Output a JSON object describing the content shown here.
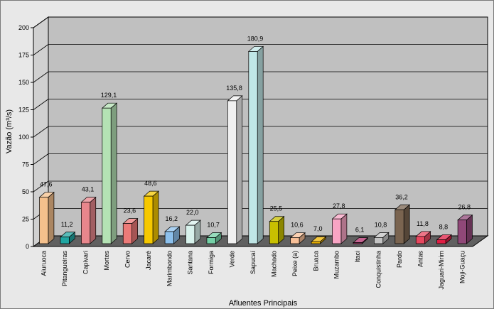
{
  "chart_data": {
    "type": "bar",
    "style": "3d-column",
    "xlabel": "Afluentes Principais",
    "ylabel": "Vazão (m³/s)",
    "ylim": [
      0,
      200
    ],
    "yticks": [
      0,
      25,
      50,
      75,
      100,
      125,
      150,
      175,
      200
    ],
    "grid": true,
    "categories": [
      "Aiuruoca",
      "Pitangueiras",
      "Capivari",
      "Mortes",
      "Cervo",
      "Jacaré",
      "Marimbondo",
      "Santana",
      "Formiga",
      "Verde",
      "Sapucaí",
      "Machado",
      "Peixe (a)",
      "Bruaca",
      "Muzambo",
      "Itaci",
      "Conquistinha",
      "Pardo",
      "Antas",
      "Jaguari-Mirim",
      "Moji-Guaçu"
    ],
    "values": [
      47.6,
      11.2,
      43.1,
      129.1,
      23.6,
      48.6,
      16.2,
      22.0,
      10.7,
      135.8,
      180.9,
      25.5,
      10.6,
      7.0,
      27.8,
      6.1,
      10.8,
      36.2,
      11.8,
      8.8,
      26.8
    ],
    "data_labels": [
      "47,6",
      "11,2",
      "43,1",
      "129,1",
      "23,6",
      "48,6",
      "16,2",
      "22,0",
      "10,7",
      "135,8",
      "180,9",
      "25,5",
      "10,6",
      "7,0",
      "27,8",
      "6,1",
      "10,8",
      "36,2",
      "11,8",
      "8,8",
      "26,8"
    ],
    "bar_colors": [
      "#f4c08c",
      "#20a6a2",
      "#e8868c",
      "#b4e2b4",
      "#ec7a78",
      "#f6c800",
      "#8cc0ec",
      "#d8f2ec",
      "#74d0a6",
      "#f0f0f0",
      "#c0e6e6",
      "#c8c000",
      "#f8c098",
      "#f0b400",
      "#f8a4c4",
      "#b0306c",
      "#c4c4c4",
      "#7a6450",
      "#e84860",
      "#e01e44",
      "#904878"
    ],
    "colors": {
      "wall": "#c0c0c0",
      "floor": "#606060",
      "frame_background": "#e8e8e8",
      "gridline": "#000000"
    }
  }
}
